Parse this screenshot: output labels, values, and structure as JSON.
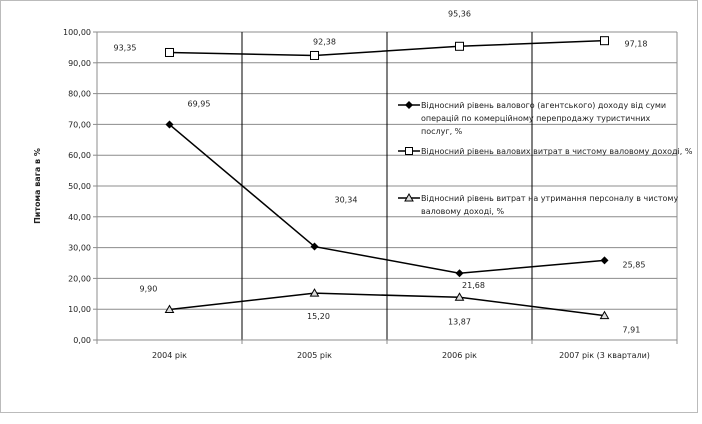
{
  "chart_data": {
    "type": "line",
    "ylabel": "Питома вага в %",
    "ylim": [
      0,
      100
    ],
    "yticks": [
      "0,00",
      "10,00",
      "20,00",
      "30,00",
      "40,00",
      "50,00",
      "60,00",
      "70,00",
      "80,00",
      "90,00",
      "100,00"
    ],
    "categories": [
      "2004 рік",
      "2005 рік",
      "2006 рік",
      "2007 рік (3 квартали)"
    ],
    "grid": true,
    "legend_position": "right (inside plot)",
    "series": [
      {
        "name": "Відносний рівень валового (агентського) доходу від суми операцій по комерційному перепродажу туристичних послуг, %",
        "marker": "diamond-filled",
        "values": [
          69.95,
          30.34,
          21.68,
          25.85
        ],
        "labels": [
          "69,95",
          "30,34",
          "21,68",
          "25,85"
        ]
      },
      {
        "name": "Відносний рівень валових витрат в чистому валовому доході, %",
        "marker": "square-open",
        "values": [
          93.35,
          92.38,
          95.36,
          97.18
        ],
        "labels": [
          "93,35",
          "92,38",
          "95,36",
          "97,18"
        ]
      },
      {
        "name": "Відносний рівень витрат на утримання персоналу в чистому валовому доході, %",
        "marker": "triangle-open",
        "values": [
          9.9,
          15.2,
          13.87,
          7.91
        ],
        "labels": [
          "9,90",
          "15,20",
          "13,87",
          "7,91"
        ]
      }
    ],
    "colors": {
      "line": "#000000",
      "grid": "#8c8c8c",
      "axis": "#8c8c8c"
    }
  }
}
